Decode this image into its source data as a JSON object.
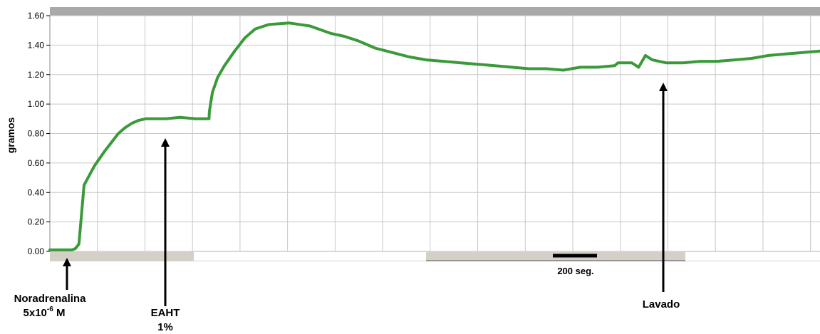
{
  "chart_data": {
    "type": "line",
    "ylabel": "gramos",
    "ylim": [
      0,
      1.6
    ],
    "yticks": [
      "0.00",
      "0.20",
      "0.40",
      "0.60",
      "0.80",
      "1.00",
      "1.20",
      "1.40",
      "1.60"
    ],
    "grid": true,
    "scale_bar_label": "200 seg.",
    "series": [
      {
        "color": "#3a9a3a",
        "x": [
          0,
          65,
          75,
          85,
          100,
          130,
          160,
          180,
          200,
          220,
          240,
          260,
          280,
          310,
          340,
          380,
          425,
          465,
          466,
          475,
          490,
          510,
          540,
          570,
          600,
          640,
          700,
          760,
          820,
          860,
          900,
          950,
          1000,
          1050,
          1100,
          1150,
          1200,
          1250,
          1300,
          1350,
          1400,
          1450,
          1500,
          1550,
          1600,
          1650,
          1660,
          1700,
          1720,
          1740,
          1760,
          1800,
          1850,
          1900,
          1950,
          2000,
          2050,
          2100,
          2150,
          2200,
          2250
        ],
        "y": [
          0.01,
          0.01,
          0.02,
          0.05,
          0.45,
          0.58,
          0.68,
          0.74,
          0.8,
          0.84,
          0.87,
          0.89,
          0.9,
          0.9,
          0.9,
          0.91,
          0.9,
          0.9,
          0.95,
          1.08,
          1.18,
          1.26,
          1.36,
          1.45,
          1.51,
          1.54,
          1.55,
          1.53,
          1.48,
          1.46,
          1.43,
          1.38,
          1.35,
          1.32,
          1.3,
          1.29,
          1.28,
          1.27,
          1.26,
          1.25,
          1.24,
          1.24,
          1.23,
          1.25,
          1.25,
          1.26,
          1.28,
          1.28,
          1.25,
          1.33,
          1.3,
          1.28,
          1.28,
          1.29,
          1.29,
          1.3,
          1.31,
          1.33,
          1.34,
          1.35,
          1.36
        ]
      }
    ],
    "annotations": [
      {
        "lines": [
          "Noradrenalina",
          "5x10",
          "-6",
          " M"
        ],
        "x": 65
      },
      {
        "lines": [
          "EAHT",
          "1%"
        ],
        "x": 465
      },
      {
        "lines": [
          "Lavado"
        ],
        "x": 1720
      }
    ]
  }
}
